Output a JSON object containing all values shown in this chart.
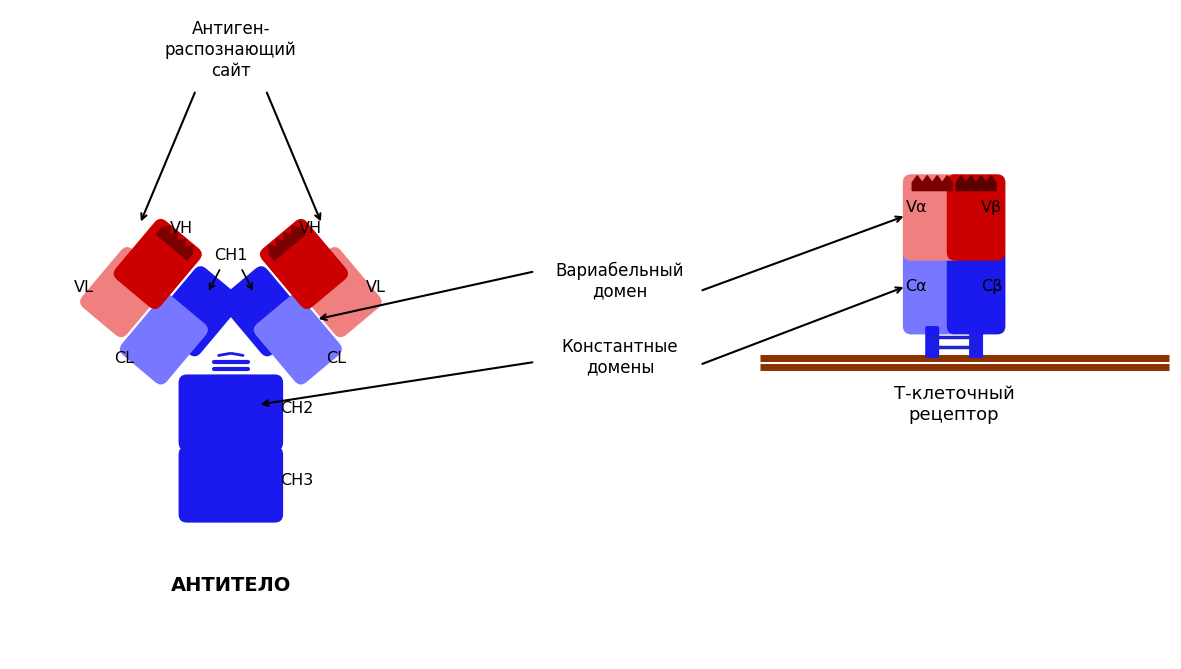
{
  "bg_color": "#ffffff",
  "dark_red": "#cc0000",
  "light_red": "#f08080",
  "dark_blue": "#1a1aee",
  "light_blue": "#7777ff",
  "dark_blue_stem": "#0000bb",
  "membrane_brown": "#8B3300",
  "stalk_blue": "#2222dd",
  "label_antigen_site": "Антиген-\nраспознающий\nсайт",
  "label_variable": "Вариабельный\nдомен",
  "label_constant": "Константные\nдомены",
  "label_VH_left": "VH",
  "label_VH_right": "VH",
  "label_VL_left": "VL",
  "label_VL_right": "VL",
  "label_CL_left": "CL",
  "label_CL_right": "CL",
  "label_CH1": "CH1",
  "label_CH2": "CH2",
  "label_CH3": "CH3",
  "label_Va": "Vα",
  "label_Vb": "Vβ",
  "label_Ca": "Cα",
  "label_Cb": "Cβ",
  "title_antibody": "АНТИТЕЛО",
  "title_receptor": "Т-клеточный\nрецептор"
}
